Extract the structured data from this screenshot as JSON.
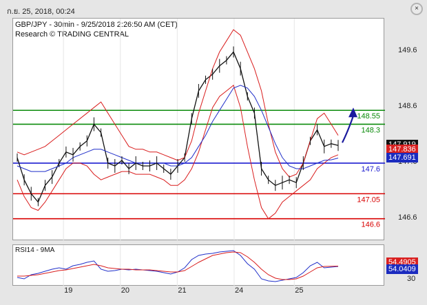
{
  "window": {
    "timestamp": "ก.ย. 25, 2018, 00:24",
    "close_glyph": "×"
  },
  "chart_header": {
    "line1": "GBP/JPY - 30min - 9/25/2018 2:26:50 AM (CET)",
    "line2": "Research © TRADING CENTRAL"
  },
  "rsi_header": "RSI14 - 9MA",
  "colors": {
    "price": "#111111",
    "bb": "#d91c1c",
    "ma": "#1f2ec9",
    "resistance": "#0a8a0a",
    "pivot": "#1b1bd0",
    "support": "#d80000",
    "arrow": "#1a1a9e"
  },
  "chart_data": [
    {
      "type": "line",
      "title": "GBP/JPY - 30min",
      "yticks": [
        "149.6",
        "148.6",
        "147.6",
        "146.6"
      ],
      "xlabels": [
        "19",
        "20",
        "21",
        "24",
        "25"
      ],
      "ylim": [
        146.2,
        150.2
      ],
      "levels": [
        {
          "value": 148.55,
          "label": "148.55",
          "kind": "resistance"
        },
        {
          "value": 148.3,
          "label": "148.3",
          "kind": "resistance"
        },
        {
          "value": 147.6,
          "label": "147.6",
          "kind": "pivot"
        },
        {
          "value": 147.05,
          "label": "147.05",
          "kind": "support"
        },
        {
          "value": 146.6,
          "label": "146.6",
          "kind": "support"
        }
      ],
      "tags": [
        {
          "value": 147.919,
          "label": "147.919",
          "style": "black"
        },
        {
          "value": 147.836,
          "label": "147.836",
          "style": "red"
        },
        {
          "value": 147.691,
          "label": "147.691",
          "style": "blue"
        }
      ],
      "series": [
        {
          "name": "",
          "values": [
            147.7,
            147.3,
            147.05,
            146.9,
            147.2,
            147.35,
            147.6,
            147.8,
            147.75,
            147.9,
            148.0,
            148.3,
            148.15,
            147.6,
            147.55,
            147.65,
            147.5,
            147.6,
            147.55,
            147.55,
            147.6,
            147.5,
            147.4,
            147.55,
            147.7,
            148.4,
            148.9,
            149.1,
            149.2,
            149.35,
            149.45,
            149.6,
            149.3,
            148.8,
            148.5,
            147.5,
            147.3,
            147.2,
            147.25,
            147.3,
            147.25,
            147.6,
            148.0,
            148.2,
            147.9,
            147.95,
            147.919
          ]
        },
        {
          "name": "",
          "values": [
            147.8,
            147.75,
            147.8,
            147.85,
            147.9,
            148.0,
            148.1,
            148.2,
            148.3,
            148.4,
            148.5,
            148.6,
            148.7,
            148.5,
            148.3,
            148.1,
            147.9,
            147.85,
            147.85,
            147.8,
            147.8,
            147.75,
            147.7,
            147.65,
            147.7,
            148.0,
            148.5,
            148.9,
            149.3,
            149.6,
            149.8,
            150.0,
            149.9,
            149.6,
            149.3,
            148.9,
            148.3,
            147.8,
            147.5,
            147.35,
            147.4,
            147.6,
            148.0,
            148.4,
            148.5,
            148.3,
            148.1
          ]
        },
        {
          "name": "",
          "values": [
            147.3,
            147.0,
            146.8,
            146.75,
            146.9,
            147.1,
            147.3,
            147.5,
            147.6,
            147.6,
            147.55,
            147.4,
            147.3,
            147.35,
            147.4,
            147.45,
            147.45,
            147.4,
            147.4,
            147.4,
            147.35,
            147.3,
            147.2,
            147.2,
            147.3,
            147.5,
            147.8,
            148.2,
            148.6,
            148.8,
            148.9,
            149.0,
            148.6,
            147.9,
            147.3,
            146.8,
            146.6,
            146.7,
            146.9,
            147.0,
            147.1,
            147.2,
            147.3,
            147.5,
            147.6,
            147.7,
            147.75
          ]
        },
        {
          "name": "",
          "values": [
            147.55,
            147.5,
            147.45,
            147.45,
            147.45,
            147.5,
            147.55,
            147.6,
            147.7,
            147.75,
            147.8,
            147.85,
            147.85,
            147.8,
            147.75,
            147.7,
            147.65,
            147.6,
            147.6,
            147.6,
            147.6,
            147.6,
            147.55,
            147.55,
            147.6,
            147.7,
            147.9,
            148.1,
            148.35,
            148.55,
            148.75,
            148.95,
            149.0,
            148.95,
            148.8,
            148.55,
            148.25,
            147.95,
            147.7,
            147.55,
            147.5,
            147.5,
            147.55,
            147.6,
            147.65,
            147.66,
            147.691
          ]
        }
      ]
    },
    {
      "type": "line",
      "title": "RSI14 - 9MA",
      "ytick": "30",
      "tags": [
        {
          "value": 54.4905,
          "label": "54.4905",
          "style": "rsired"
        },
        {
          "value": 54.0409,
          "label": "54.0409",
          "style": "rsiblue"
        }
      ],
      "series": [
        {
          "name": "",
          "values": [
            38,
            36,
            42,
            44,
            47,
            50,
            52,
            50,
            55,
            57,
            60,
            62,
            50,
            47,
            48,
            50,
            49,
            50,
            49,
            48,
            47,
            45,
            43,
            46,
            52,
            64,
            70,
            72,
            73,
            75,
            76,
            77,
            70,
            58,
            50,
            36,
            33,
            32,
            34,
            36,
            38,
            45,
            55,
            60,
            52,
            53,
            54.04
          ]
        },
        {
          "name": "",
          "values": [
            40,
            40,
            41,
            42,
            44,
            46,
            48,
            49,
            51,
            53,
            55,
            57,
            55,
            52,
            51,
            50,
            50,
            49,
            49,
            49,
            48,
            47,
            46,
            46,
            48,
            54,
            60,
            65,
            70,
            72,
            74,
            75,
            74,
            68,
            60,
            50,
            42,
            37,
            35,
            35,
            36,
            40,
            46,
            52,
            54,
            54.3,
            54.49
          ]
        }
      ]
    }
  ]
}
